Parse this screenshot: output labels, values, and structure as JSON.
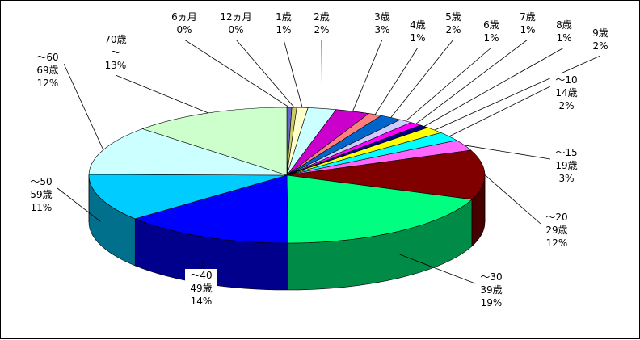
{
  "chart_data": {
    "type": "pie",
    "style": "3d",
    "title": "",
    "slices": [
      {
        "label_lines": [
          "6ヵ月",
          "0%"
        ],
        "value": 0.4,
        "color": "#6666cc"
      },
      {
        "label_lines": [
          "12ヵ月",
          "0%"
        ],
        "value": 0.4,
        "color": "#cccc66"
      },
      {
        "label_lines": [
          "1歳",
          "1%"
        ],
        "value": 0.9,
        "color": "#ffffcc"
      },
      {
        "label_lines": [
          "2歳",
          "2%"
        ],
        "value": 2.3,
        "color": "#ccffff"
      },
      {
        "label_lines": [
          "3歳",
          "3%"
        ],
        "value": 2.8,
        "color": "#cc00cc"
      },
      {
        "label_lines": [
          "4歳",
          "1%"
        ],
        "value": 1.1,
        "color": "#ff7f7f"
      },
      {
        "label_lines": [
          "5歳",
          "2%"
        ],
        "value": 1.8,
        "color": "#0066cc"
      },
      {
        "label_lines": [
          "6歳",
          "1%"
        ],
        "value": 1.1,
        "color": "#ccccff"
      },
      {
        "label_lines": [
          "7歳",
          "1%"
        ],
        "value": 1.0,
        "color": "#ff00ff"
      },
      {
        "label_lines": [
          "8歳",
          "1%"
        ],
        "value": 0.8,
        "color": "#000080"
      },
      {
        "label_lines": [
          "9歳",
          "2%"
        ],
        "value": 1.6,
        "color": "#ffff00"
      },
      {
        "label_lines": [
          "～10",
          "14歳",
          "2%"
        ],
        "value": 2.2,
        "color": "#00ffff"
      },
      {
        "label_lines": [
          "～15",
          "19歳",
          "3%"
        ],
        "value": 2.6,
        "color": "#ff66ff"
      },
      {
        "label_lines": [
          "～20",
          "29歳",
          "12%"
        ],
        "value": 11.8,
        "color": "#800000"
      },
      {
        "label_lines": [
          "～30",
          "39歳",
          "19%"
        ],
        "value": 19.1,
        "color": "#00ff80"
      },
      {
        "label_lines": [
          "～40",
          "49歳",
          "14%"
        ],
        "value": 14.0,
        "color": "#0000ff"
      },
      {
        "label_lines": [
          "～50",
          "59歳",
          "11%"
        ],
        "value": 11.3,
        "color": "#00ccff"
      },
      {
        "label_lines": [
          "～60",
          "69歳",
          "12%"
        ],
        "value": 11.8,
        "color": "#ccffff"
      },
      {
        "label_lines": [
          "70歳",
          "～",
          "13%"
        ],
        "value": 13.0,
        "color": "#ccffcc"
      }
    ]
  }
}
